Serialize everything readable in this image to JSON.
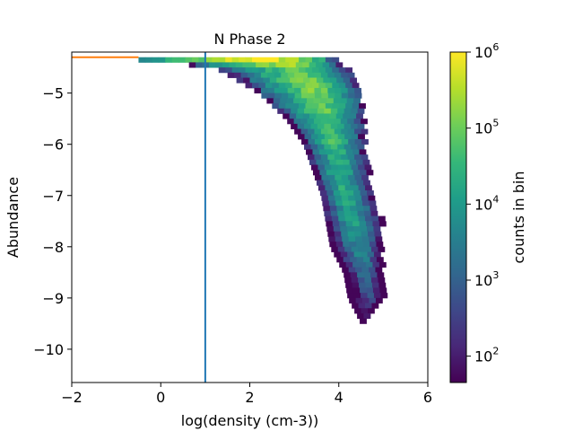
{
  "chart_data": {
    "type": "heatmap",
    "title": "N Phase 2",
    "xlabel": "log(density (cm-3))",
    "ylabel": "Abundance",
    "xlim": [
      -2,
      6
    ],
    "ylim": [
      -10.65,
      -4.2
    ],
    "x_ticks": [
      -2,
      0,
      2,
      4,
      6
    ],
    "x_tick_labels": [
      "−2",
      "0",
      "2",
      "4",
      "6"
    ],
    "y_ticks": [
      -10,
      -9,
      -8,
      -7,
      -6,
      -5
    ],
    "y_tick_labels": [
      "−10",
      "−9",
      "−8",
      "−7",
      "−6",
      "−5"
    ],
    "grid": false,
    "colorbar": {
      "label": "counts in bin",
      "scale": "log",
      "colormap": "viridis",
      "range": [
        45,
        1000000
      ],
      "ticks": [
        100,
        1000,
        10000,
        100000,
        1000000
      ],
      "tick_labels": [
        {
          "base": "10",
          "exp": "2"
        },
        {
          "base": "10",
          "exp": "3"
        },
        {
          "base": "10",
          "exp": "4"
        },
        {
          "base": "10",
          "exp": "5"
        },
        {
          "base": "10",
          "exp": "6"
        }
      ]
    },
    "reference_lines": [
      {
        "orientation": "vertical",
        "x": 1.0,
        "color": "#1f77b4"
      },
      {
        "orientation": "horizontal",
        "y": -4.3,
        "x_range": [
          -2,
          -0.5
        ],
        "color": "#ff7f0e"
      }
    ],
    "distribution": {
      "bin_width_x": 0.15,
      "bin_height_y": 0.1,
      "rows": [
        {
          "y": -4.35,
          "x_min": -0.5,
          "x_max": 4.0,
          "peak_x": 2.3,
          "peak_log_count": 6.0
        },
        {
          "y": -4.5,
          "x_min": 1.2,
          "x_max": 4.2,
          "peak_x": 3.1,
          "peak_log_count": 5.0
        },
        {
          "y": -5.0,
          "x_min": 2.2,
          "x_max": 4.5,
          "peak_x": 3.5,
          "peak_log_count": 5.1
        },
        {
          "y": -5.5,
          "x_min": 2.8,
          "x_max": 4.6,
          "peak_x": 3.75,
          "peak_log_count": 4.8
        },
        {
          "y": -6.0,
          "x_min": 3.2,
          "x_max": 4.6,
          "peak_x": 3.9,
          "peak_log_count": 4.6
        },
        {
          "y": -6.5,
          "x_min": 3.4,
          "x_max": 4.7,
          "peak_x": 4.0,
          "peak_log_count": 4.4
        },
        {
          "y": -7.0,
          "x_min": 3.6,
          "x_max": 4.8,
          "peak_x": 4.15,
          "peak_log_count": 4.3
        },
        {
          "y": -7.5,
          "x_min": 3.7,
          "x_max": 5.0,
          "peak_x": 4.3,
          "peak_log_count": 4.1
        },
        {
          "y": -8.0,
          "x_min": 3.8,
          "x_max": 5.0,
          "peak_x": 4.45,
          "peak_log_count": 3.7
        },
        {
          "y": -8.5,
          "x_min": 4.1,
          "x_max": 5.0,
          "peak_x": 4.6,
          "peak_log_count": 3.3
        },
        {
          "y": -9.0,
          "x_min": 4.2,
          "x_max": 5.1,
          "peak_x": 4.7,
          "peak_log_count": 2.8
        },
        {
          "y": -9.5,
          "x_min": 4.5,
          "x_max": 4.6,
          "peak_x": 4.55,
          "peak_log_count": 1.7
        }
      ]
    }
  }
}
